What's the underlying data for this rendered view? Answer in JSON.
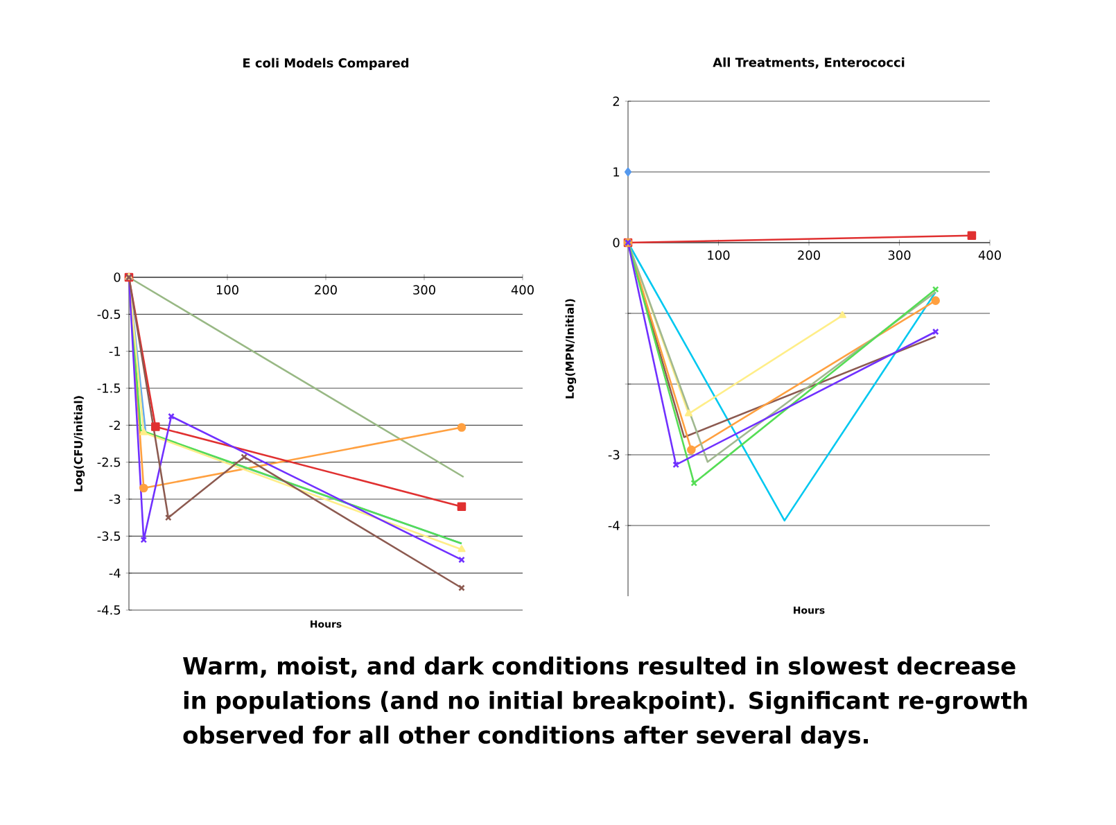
{
  "chart_data": [
    {
      "type": "line",
      "title": "E coli Models Compared",
      "xlabel": "Hours",
      "ylabel": "Log(CFU/initial)",
      "xlim": [
        0,
        400
      ],
      "ylim": [
        -4.5,
        0
      ],
      "xticks": [
        100,
        200,
        300,
        400
      ],
      "yticks": [
        0,
        -0.5,
        -1,
        -1.5,
        -2,
        -2.5,
        -3,
        -3.5,
        -4,
        -4.5
      ],
      "grid": "y",
      "series": [
        {
          "color": "#98b884",
          "marker": "none",
          "x": [
            0,
            340
          ],
          "values": [
            0,
            -2.7
          ]
        },
        {
          "color": "#ffa040",
          "marker": "circle",
          "x": [
            0,
            15,
            338
          ],
          "values": [
            0,
            -2.85,
            -2.03
          ]
        },
        {
          "color": "#e03030",
          "marker": "square",
          "x": [
            0,
            27,
            338
          ],
          "values": [
            0,
            -2.02,
            -3.1
          ]
        },
        {
          "color": "#66aaee",
          "marker": "none",
          "x": [
            0,
            17,
            338
          ],
          "values": [
            0,
            -2.1,
            -3.6
          ]
        },
        {
          "color": "#55dd55",
          "marker": "none",
          "x": [
            0,
            12,
            338
          ],
          "values": [
            0,
            -2.07,
            -3.6
          ]
        },
        {
          "color": "#ffee88",
          "marker": "triangle",
          "x": [
            0,
            15,
            338
          ],
          "values": [
            0,
            -2.1,
            -3.68
          ]
        },
        {
          "color": "#7030ff",
          "marker": "cross",
          "x": [
            0,
            15,
            43,
            338
          ],
          "values": [
            0,
            -3.55,
            -1.88,
            -3.82
          ]
        },
        {
          "color": "#8c5a50",
          "marker": "cross",
          "x": [
            0,
            40,
            117,
            338
          ],
          "values": [
            0,
            -3.25,
            -2.43,
            -4.2
          ]
        }
      ],
      "annotations": [
        "Warm, moist, and dark conditions resulted in slowest decrease in populations (and no initial breakpoint). Significant re-growth observed for all other conditions after several days."
      ]
    },
    {
      "type": "line",
      "title": "All Treatments, Enterococci",
      "xlabel": "Hours",
      "ylabel": "Log(MPN/Initial)",
      "xlim": [
        0,
        400
      ],
      "ylim": [
        -5,
        2
      ],
      "xticks": [
        100,
        200,
        300,
        400
      ],
      "yticks": [
        2,
        1,
        0,
        {
          "value": -1,
          "label": null
        },
        {
          "value": -2,
          "label": null
        },
        -3,
        -4
      ],
      "grid": "y",
      "series": [
        {
          "color": "#e03030",
          "marker": "square",
          "x": [
            0,
            380
          ],
          "values": [
            0,
            0.1
          ]
        },
        {
          "type": "scatter",
          "color": "#5599ee",
          "marker": "diamond",
          "x": [
            0
          ],
          "values": [
            1
          ]
        },
        {
          "color": "#00c8f0",
          "marker": "none",
          "x": [
            0,
            173,
            340
          ],
          "values": [
            0,
            -3.93,
            -0.7
          ]
        },
        {
          "color": "#ffee88",
          "marker": "triangle",
          "x": [
            0,
            67,
            237
          ],
          "values": [
            0,
            -2.42,
            -1.03
          ]
        },
        {
          "color": "#8c5a50",
          "marker": "none",
          "x": [
            0,
            62,
            340
          ],
          "values": [
            0,
            -2.75,
            -1.33
          ]
        },
        {
          "color": "#ffa040",
          "marker": "circle",
          "x": [
            0,
            70,
            340
          ],
          "values": [
            0,
            -2.93,
            -0.82
          ]
        },
        {
          "color": "#a0b890",
          "marker": "none",
          "x": [
            0,
            88,
            340
          ],
          "values": [
            0,
            -3.1,
            -0.7
          ]
        },
        {
          "color": "#55dd55",
          "marker": "cross",
          "x": [
            0,
            73,
            340
          ],
          "values": [
            0,
            -3.4,
            -0.66
          ]
        },
        {
          "color": "#7030ff",
          "marker": "cross",
          "x": [
            0,
            53,
            340
          ],
          "values": [
            0,
            -3.14,
            -1.26
          ]
        }
      ]
    }
  ]
}
